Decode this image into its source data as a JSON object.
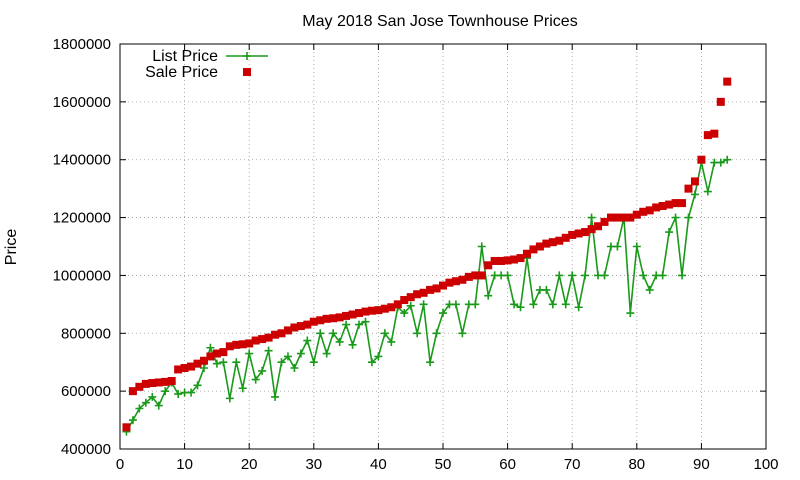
{
  "chart_data": {
    "type": "scatter",
    "title": "May 2018 San Jose Townhouse Prices",
    "xlabel": "",
    "ylabel": "Price",
    "xlim": [
      0,
      100
    ],
    "ylim": [
      400000,
      1800000
    ],
    "xticks": [
      0,
      10,
      20,
      30,
      40,
      50,
      60,
      70,
      80,
      90,
      100
    ],
    "yticks": [
      400000,
      600000,
      800000,
      1000000,
      1200000,
      1400000,
      1600000,
      1800000
    ],
    "grid": true,
    "legend_position": "top-left",
    "series": [
      {
        "name": "List Price",
        "style": "line-with-plus",
        "color": "#1a9a1a",
        "points": [
          [
            1,
            460000
          ],
          [
            2,
            500000
          ],
          [
            3,
            540000
          ],
          [
            4,
            560000
          ],
          [
            5,
            580000
          ],
          [
            6,
            550000
          ],
          [
            7,
            600000
          ],
          [
            8,
            630000
          ],
          [
            9,
            590000
          ],
          [
            10,
            595000
          ],
          [
            11,
            595000
          ],
          [
            12,
            620000
          ],
          [
            13,
            680000
          ],
          [
            14,
            750000
          ],
          [
            15,
            695000
          ],
          [
            16,
            700000
          ],
          [
            17,
            575000
          ],
          [
            18,
            700000
          ],
          [
            19,
            610000
          ],
          [
            20,
            730000
          ],
          [
            21,
            640000
          ],
          [
            22,
            670000
          ],
          [
            23,
            740000
          ],
          [
            24,
            580000
          ],
          [
            25,
            700000
          ],
          [
            26,
            720000
          ],
          [
            27,
            680000
          ],
          [
            28,
            730000
          ],
          [
            29,
            775000
          ],
          [
            30,
            700000
          ],
          [
            31,
            800000
          ],
          [
            32,
            730000
          ],
          [
            33,
            800000
          ],
          [
            34,
            770000
          ],
          [
            35,
            830000
          ],
          [
            36,
            760000
          ],
          [
            37,
            830000
          ],
          [
            38,
            840000
          ],
          [
            39,
            700000
          ],
          [
            40,
            720000
          ],
          [
            41,
            800000
          ],
          [
            42,
            770000
          ],
          [
            43,
            890000
          ],
          [
            44,
            870000
          ],
          [
            45,
            895000
          ],
          [
            46,
            800000
          ],
          [
            47,
            900000
          ],
          [
            48,
            700000
          ],
          [
            49,
            800000
          ],
          [
            50,
            870000
          ],
          [
            51,
            900000
          ],
          [
            52,
            900000
          ],
          [
            53,
            800000
          ],
          [
            54,
            900000
          ],
          [
            55,
            900000
          ],
          [
            56,
            1100000
          ],
          [
            57,
            930000
          ],
          [
            58,
            1000000
          ],
          [
            59,
            1000000
          ],
          [
            60,
            1000000
          ],
          [
            61,
            900000
          ],
          [
            62,
            890000
          ],
          [
            63,
            1060000
          ],
          [
            64,
            900000
          ],
          [
            65,
            950000
          ],
          [
            66,
            950000
          ],
          [
            67,
            900000
          ],
          [
            68,
            1000000
          ],
          [
            69,
            900000
          ],
          [
            70,
            1000000
          ],
          [
            71,
            890000
          ],
          [
            72,
            1000000
          ],
          [
            73,
            1200000
          ],
          [
            74,
            1000000
          ],
          [
            75,
            1000000
          ],
          [
            76,
            1100000
          ],
          [
            77,
            1100000
          ],
          [
            78,
            1200000
          ],
          [
            79,
            870000
          ],
          [
            80,
            1100000
          ],
          [
            81,
            1000000
          ],
          [
            82,
            950000
          ],
          [
            83,
            1000000
          ],
          [
            84,
            1000000
          ],
          [
            85,
            1150000
          ],
          [
            86,
            1200000
          ],
          [
            87,
            1000000
          ],
          [
            88,
            1200000
          ],
          [
            89,
            1280000
          ],
          [
            90,
            1390000
          ],
          [
            91,
            1290000
          ],
          [
            92,
            1390000
          ],
          [
            93,
            1390000
          ],
          [
            94,
            1400000
          ]
        ]
      },
      {
        "name": "Sale Price",
        "style": "square-marker",
        "color": "#cc0000",
        "points": [
          [
            1,
            475000
          ],
          [
            2,
            600000
          ],
          [
            3,
            615000
          ],
          [
            4,
            625000
          ],
          [
            5,
            628000
          ],
          [
            6,
            630000
          ],
          [
            7,
            632000
          ],
          [
            8,
            635000
          ],
          [
            9,
            675000
          ],
          [
            10,
            680000
          ],
          [
            11,
            685000
          ],
          [
            12,
            695000
          ],
          [
            13,
            705000
          ],
          [
            14,
            720000
          ],
          [
            15,
            730000
          ],
          [
            16,
            735000
          ],
          [
            17,
            755000
          ],
          [
            18,
            760000
          ],
          [
            19,
            762000
          ],
          [
            20,
            765000
          ],
          [
            21,
            775000
          ],
          [
            22,
            780000
          ],
          [
            23,
            785000
          ],
          [
            24,
            795000
          ],
          [
            25,
            800000
          ],
          [
            26,
            810000
          ],
          [
            27,
            820000
          ],
          [
            28,
            825000
          ],
          [
            29,
            830000
          ],
          [
            30,
            840000
          ],
          [
            31,
            845000
          ],
          [
            32,
            850000
          ],
          [
            33,
            852000
          ],
          [
            34,
            855000
          ],
          [
            35,
            860000
          ],
          [
            36,
            865000
          ],
          [
            37,
            870000
          ],
          [
            38,
            875000
          ],
          [
            39,
            878000
          ],
          [
            40,
            880000
          ],
          [
            41,
            885000
          ],
          [
            42,
            890000
          ],
          [
            43,
            900000
          ],
          [
            44,
            915000
          ],
          [
            45,
            925000
          ],
          [
            46,
            935000
          ],
          [
            47,
            940000
          ],
          [
            48,
            950000
          ],
          [
            49,
            955000
          ],
          [
            50,
            965000
          ],
          [
            51,
            975000
          ],
          [
            52,
            980000
          ],
          [
            53,
            985000
          ],
          [
            54,
            995000
          ],
          [
            55,
            1000000
          ],
          [
            56,
            1000000
          ],
          [
            57,
            1035000
          ],
          [
            58,
            1050000
          ],
          [
            59,
            1050000
          ],
          [
            60,
            1052000
          ],
          [
            61,
            1055000
          ],
          [
            62,
            1060000
          ],
          [
            63,
            1075000
          ],
          [
            64,
            1090000
          ],
          [
            65,
            1100000
          ],
          [
            66,
            1110000
          ],
          [
            67,
            1115000
          ],
          [
            68,
            1120000
          ],
          [
            69,
            1130000
          ],
          [
            70,
            1140000
          ],
          [
            71,
            1145000
          ],
          [
            72,
            1150000
          ],
          [
            73,
            1160000
          ],
          [
            74,
            1170000
          ],
          [
            75,
            1185000
          ],
          [
            76,
            1200000
          ],
          [
            77,
            1200000
          ],
          [
            78,
            1200000
          ],
          [
            79,
            1200000
          ],
          [
            80,
            1210000
          ],
          [
            81,
            1220000
          ],
          [
            82,
            1225000
          ],
          [
            83,
            1235000
          ],
          [
            84,
            1240000
          ],
          [
            85,
            1245000
          ],
          [
            86,
            1250000
          ],
          [
            87,
            1250000
          ],
          [
            88,
            1300000
          ],
          [
            89,
            1325000
          ],
          [
            90,
            1400000
          ],
          [
            91,
            1485000
          ],
          [
            92,
            1490000
          ],
          [
            93,
            1600000
          ],
          [
            94,
            1670000
          ]
        ]
      }
    ]
  }
}
